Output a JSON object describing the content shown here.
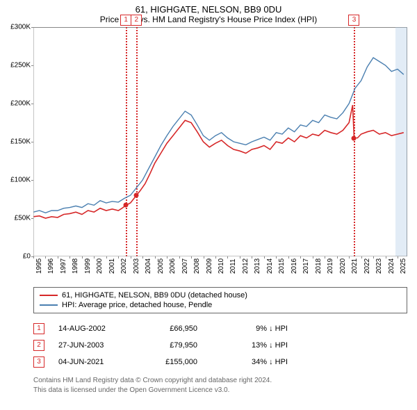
{
  "title": "61, HIGHGATE, NELSON, BB9 0DU",
  "subtitle": "Price paid vs. HM Land Registry's House Price Index (HPI)",
  "chart": {
    "type": "line",
    "x_domain_years": [
      1995,
      2025.8
    ],
    "x_ticks_years": [
      1995,
      1996,
      1997,
      1998,
      1999,
      2000,
      2001,
      2002,
      2003,
      2004,
      2005,
      2006,
      2007,
      2008,
      2009,
      2010,
      2011,
      2012,
      2013,
      2014,
      2015,
      2016,
      2017,
      2018,
      2019,
      2020,
      2021,
      2022,
      2023,
      2024,
      2025
    ],
    "ylim": [
      0,
      300000
    ],
    "y_ticks": [
      0,
      50000,
      100000,
      150000,
      200000,
      250000,
      300000
    ],
    "y_tick_labels": [
      "£0",
      "£50K",
      "£100K",
      "£150K",
      "£200K",
      "£250K",
      "£300K"
    ],
    "currency_prefix": "£",
    "background_color": "#ffffff",
    "recent_band": {
      "start_year": 2024.8,
      "end_year": 2025.8,
      "color_rgba": "rgba(173,200,230,.35)"
    },
    "series": {
      "property": {
        "label": "61, HIGHGATE, NELSON, BB9 0DU (detached house)",
        "color": "#d62728",
        "line_width": 1.6,
        "points_year_value": [
          [
            1995.0,
            52000
          ],
          [
            1995.5,
            53000
          ],
          [
            1996.0,
            50000
          ],
          [
            1996.5,
            52000
          ],
          [
            1997.0,
            51000
          ],
          [
            1997.5,
            55000
          ],
          [
            1998.0,
            56000
          ],
          [
            1998.5,
            58000
          ],
          [
            1999.0,
            55000
          ],
          [
            1999.5,
            60000
          ],
          [
            2000.0,
            58000
          ],
          [
            2000.5,
            63000
          ],
          [
            2001.0,
            60000
          ],
          [
            2001.5,
            62000
          ],
          [
            2002.0,
            60000
          ],
          [
            2002.3,
            63000
          ],
          [
            2002.62,
            66950
          ],
          [
            2003.0,
            70000
          ],
          [
            2003.49,
            79950
          ],
          [
            2003.8,
            86000
          ],
          [
            2004.2,
            95000
          ],
          [
            2004.6,
            108000
          ],
          [
            2005.0,
            122000
          ],
          [
            2005.5,
            135000
          ],
          [
            2006.0,
            148000
          ],
          [
            2006.5,
            158000
          ],
          [
            2007.0,
            168000
          ],
          [
            2007.5,
            178000
          ],
          [
            2008.0,
            175000
          ],
          [
            2008.5,
            163000
          ],
          [
            2009.0,
            150000
          ],
          [
            2009.5,
            143000
          ],
          [
            2010.0,
            148000
          ],
          [
            2010.5,
            152000
          ],
          [
            2011.0,
            145000
          ],
          [
            2011.5,
            140000
          ],
          [
            2012.0,
            138000
          ],
          [
            2012.5,
            135000
          ],
          [
            2013.0,
            140000
          ],
          [
            2013.5,
            142000
          ],
          [
            2014.0,
            145000
          ],
          [
            2014.5,
            140000
          ],
          [
            2015.0,
            150000
          ],
          [
            2015.5,
            148000
          ],
          [
            2016.0,
            155000
          ],
          [
            2016.5,
            150000
          ],
          [
            2017.0,
            158000
          ],
          [
            2017.5,
            155000
          ],
          [
            2018.0,
            160000
          ],
          [
            2018.5,
            158000
          ],
          [
            2019.0,
            165000
          ],
          [
            2019.5,
            162000
          ],
          [
            2020.0,
            160000
          ],
          [
            2020.5,
            165000
          ],
          [
            2021.0,
            175000
          ],
          [
            2021.3,
            198000
          ],
          [
            2021.42,
            155000
          ],
          [
            2021.7,
            155000
          ],
          [
            2022.0,
            160000
          ],
          [
            2022.5,
            163000
          ],
          [
            2023.0,
            165000
          ],
          [
            2023.5,
            160000
          ],
          [
            2024.0,
            162000
          ],
          [
            2024.5,
            158000
          ],
          [
            2025.0,
            160000
          ],
          [
            2025.5,
            162000
          ]
        ]
      },
      "hpi": {
        "label": "HPI: Average price, detached house, Pendle",
        "color": "#4a7fb0",
        "line_width": 1.4,
        "points_year_value": [
          [
            1995.0,
            58000
          ],
          [
            1995.5,
            60000
          ],
          [
            1996.0,
            57000
          ],
          [
            1996.5,
            60000
          ],
          [
            1997.0,
            60000
          ],
          [
            1997.5,
            63000
          ],
          [
            1998.0,
            64000
          ],
          [
            1998.5,
            66000
          ],
          [
            1999.0,
            64000
          ],
          [
            1999.5,
            69000
          ],
          [
            2000.0,
            67000
          ],
          [
            2000.5,
            73000
          ],
          [
            2001.0,
            70000
          ],
          [
            2001.5,
            72000
          ],
          [
            2002.0,
            71000
          ],
          [
            2002.5,
            76000
          ],
          [
            2003.0,
            80000
          ],
          [
            2003.5,
            90000
          ],
          [
            2004.0,
            100000
          ],
          [
            2004.5,
            115000
          ],
          [
            2005.0,
            130000
          ],
          [
            2005.5,
            145000
          ],
          [
            2006.0,
            158000
          ],
          [
            2006.5,
            170000
          ],
          [
            2007.0,
            180000
          ],
          [
            2007.5,
            190000
          ],
          [
            2008.0,
            185000
          ],
          [
            2008.5,
            172000
          ],
          [
            2009.0,
            158000
          ],
          [
            2009.5,
            152000
          ],
          [
            2010.0,
            158000
          ],
          [
            2010.5,
            162000
          ],
          [
            2011.0,
            155000
          ],
          [
            2011.5,
            150000
          ],
          [
            2012.0,
            148000
          ],
          [
            2012.5,
            146000
          ],
          [
            2013.0,
            150000
          ],
          [
            2013.5,
            153000
          ],
          [
            2014.0,
            156000
          ],
          [
            2014.5,
            152000
          ],
          [
            2015.0,
            162000
          ],
          [
            2015.5,
            160000
          ],
          [
            2016.0,
            168000
          ],
          [
            2016.5,
            163000
          ],
          [
            2017.0,
            172000
          ],
          [
            2017.5,
            170000
          ],
          [
            2018.0,
            178000
          ],
          [
            2018.5,
            175000
          ],
          [
            2019.0,
            185000
          ],
          [
            2019.5,
            182000
          ],
          [
            2020.0,
            180000
          ],
          [
            2020.5,
            188000
          ],
          [
            2021.0,
            200000
          ],
          [
            2021.5,
            220000
          ],
          [
            2022.0,
            230000
          ],
          [
            2022.5,
            248000
          ],
          [
            2023.0,
            260000
          ],
          [
            2023.5,
            255000
          ],
          [
            2024.0,
            250000
          ],
          [
            2024.5,
            242000
          ],
          [
            2025.0,
            245000
          ],
          [
            2025.5,
            238000
          ]
        ]
      }
    },
    "sales_markers": [
      {
        "n": "1",
        "year": 2002.62,
        "value": 66950,
        "marker_color": "#d62728"
      },
      {
        "n": "2",
        "year": 2003.49,
        "value": 79950,
        "marker_color": "#d62728"
      },
      {
        "n": "3",
        "year": 2021.42,
        "value": 155000,
        "marker_color": "#d62728"
      }
    ]
  },
  "legend": {
    "items": [
      {
        "color": "#d62728",
        "label_key": "chart.series.property.label"
      },
      {
        "color": "#4a7fb0",
        "label_key": "chart.series.hpi.label"
      }
    ]
  },
  "sales_table": {
    "direction_glyph": "↓",
    "suffix": "HPI",
    "rows": [
      {
        "n": "1",
        "date": "14-AUG-2002",
        "price": "£66,950",
        "diff": "9%"
      },
      {
        "n": "2",
        "date": "27-JUN-2003",
        "price": "£79,950",
        "diff": "13%"
      },
      {
        "n": "3",
        "date": "04-JUN-2021",
        "price": "£155,000",
        "diff": "34%"
      }
    ]
  },
  "footer": {
    "line1": "Contains HM Land Registry data © Crown copyright and database right 2024.",
    "line2": "This data is licensed under the Open Government Licence v3.0."
  }
}
